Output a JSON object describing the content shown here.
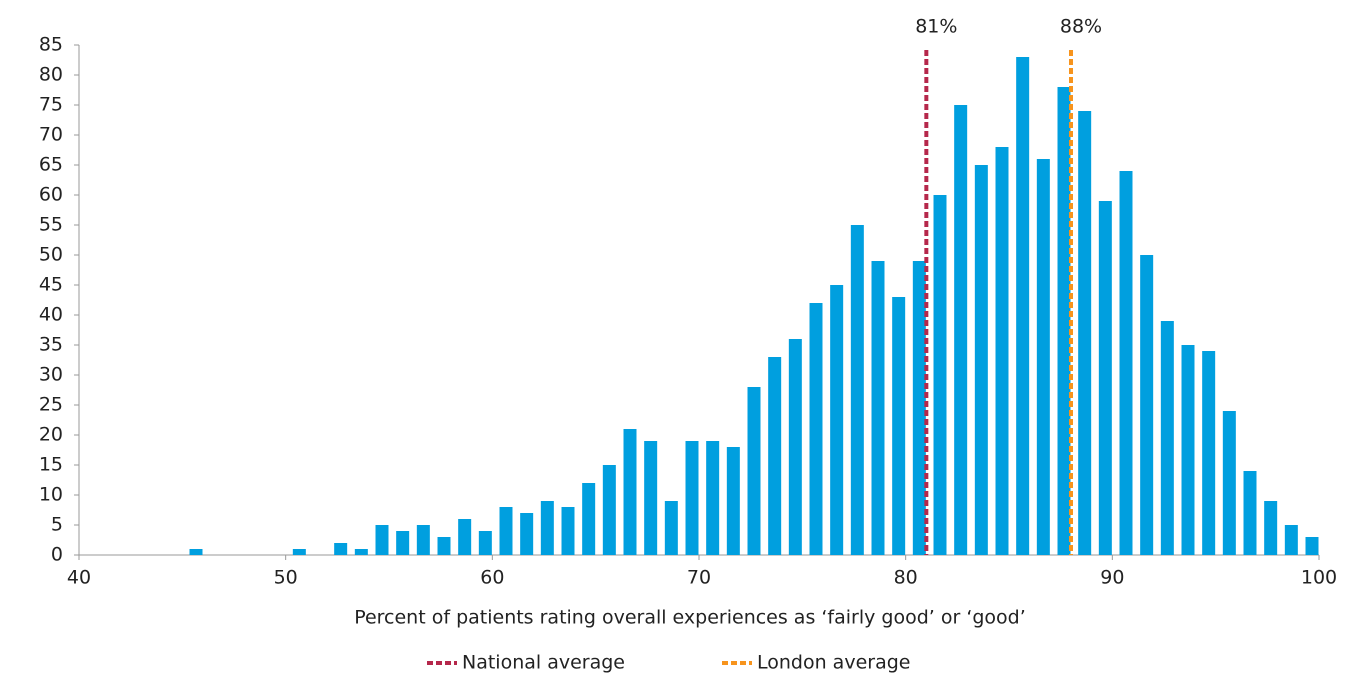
{
  "chart_data": {
    "type": "bar",
    "x_label": "Percent of patients rating overall experiences as ‘fairly good’ or ‘good’",
    "x": [
      46,
      51,
      53,
      54,
      55,
      56,
      57,
      58,
      59,
      60,
      61,
      62,
      63,
      64,
      65,
      66,
      67,
      68,
      69,
      70,
      71,
      72,
      73,
      74,
      75,
      76,
      77,
      78,
      79,
      80,
      81,
      82,
      83,
      84,
      85,
      86,
      87,
      88,
      89,
      90,
      91,
      92,
      93,
      94,
      95,
      96,
      97,
      98,
      99,
      100
    ],
    "values": [
      1,
      1,
      2,
      1,
      5,
      4,
      5,
      3,
      6,
      4,
      8,
      7,
      9,
      8,
      12,
      15,
      21,
      19,
      9,
      19,
      19,
      18,
      28,
      33,
      36,
      42,
      45,
      55,
      49,
      43,
      49,
      60,
      75,
      65,
      68,
      83,
      66,
      78,
      74,
      59,
      64,
      50,
      39,
      35,
      34,
      24,
      14,
      9,
      5,
      3
    ],
    "color": "#009fdf",
    "xlim": [
      40,
      100
    ],
    "xticks": [
      40,
      50,
      60,
      70,
      80,
      90,
      100
    ],
    "ylim": [
      0,
      85
    ],
    "yticks": [
      0,
      5,
      10,
      15,
      20,
      25,
      30,
      35,
      40,
      45,
      50,
      55,
      60,
      65,
      70,
      75,
      80,
      85
    ],
    "grid": false,
    "reference_lines": [
      {
        "name": "National average",
        "value": 81,
        "label": "81%",
        "color": "#b5284b"
      },
      {
        "name": "London average",
        "value": 88,
        "label": "88%",
        "color": "#f7941d"
      }
    ],
    "legend": "bottom"
  }
}
